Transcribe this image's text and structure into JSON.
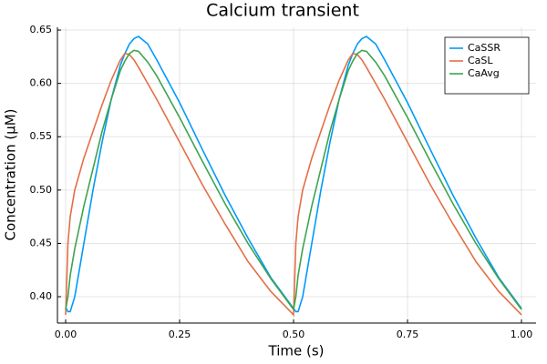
{
  "chart_data": {
    "type": "line",
    "title": "Calcium transient",
    "x_label": "Time (s)",
    "y_label": "Concentration (μM)",
    "x": [
      0,
      0.005,
      0.01,
      0.02,
      0.04,
      0.06,
      0.08,
      0.1,
      0.12,
      0.13,
      0.14,
      0.15,
      0.16,
      0.18,
      0.2,
      0.25,
      0.3,
      0.35,
      0.4,
      0.45,
      0.5,
      0.505,
      0.51,
      0.52,
      0.54,
      0.56,
      0.58,
      0.6,
      0.62,
      0.63,
      0.64,
      0.65,
      0.66,
      0.68,
      0.7,
      0.75,
      0.8,
      0.85,
      0.9,
      0.95,
      1.0
    ],
    "series": [
      {
        "name": "CaSSR",
        "color": "#009AFA",
        "values": [
          0.39,
          0.386,
          0.386,
          0.4,
          0.45,
          0.5,
          0.545,
          0.585,
          0.617,
          0.628,
          0.637,
          0.642,
          0.644,
          0.637,
          0.622,
          0.582,
          0.538,
          0.495,
          0.455,
          0.418,
          0.389,
          0.386,
          0.386,
          0.4,
          0.45,
          0.5,
          0.545,
          0.585,
          0.617,
          0.628,
          0.637,
          0.642,
          0.644,
          0.637,
          0.622,
          0.582,
          0.538,
          0.495,
          0.455,
          0.418,
          0.389
        ]
      },
      {
        "name": "CaSL",
        "color": "#E36F47",
        "values": [
          0.383,
          0.45,
          0.475,
          0.5,
          0.53,
          0.555,
          0.58,
          0.603,
          0.622,
          0.628,
          0.627,
          0.622,
          0.615,
          0.6,
          0.585,
          0.545,
          0.505,
          0.468,
          0.433,
          0.405,
          0.383,
          0.45,
          0.475,
          0.5,
          0.53,
          0.555,
          0.58,
          0.603,
          0.622,
          0.628,
          0.627,
          0.622,
          0.615,
          0.6,
          0.585,
          0.545,
          0.505,
          0.468,
          0.433,
          0.405,
          0.383
        ]
      },
      {
        "name": "CaAvg",
        "color": "#3EA44E",
        "values": [
          0.388,
          0.4,
          0.42,
          0.445,
          0.485,
          0.52,
          0.555,
          0.585,
          0.612,
          0.621,
          0.628,
          0.631,
          0.63,
          0.62,
          0.607,
          0.568,
          0.527,
          0.487,
          0.45,
          0.417,
          0.388,
          0.4,
          0.42,
          0.445,
          0.485,
          0.52,
          0.555,
          0.585,
          0.612,
          0.621,
          0.628,
          0.631,
          0.63,
          0.62,
          0.607,
          0.568,
          0.527,
          0.487,
          0.45,
          0.417,
          0.388
        ]
      }
    ],
    "xlim": [
      -0.018,
      1.032
    ],
    "xticks": [
      {
        "value": 0,
        "label": "0.00"
      },
      0.25,
      {
        "value": 0.5,
        "label": "0.50"
      },
      0.75,
      {
        "value": 1,
        "label": "1.00"
      }
    ],
    "ylim": [
      0.3753,
      0.6526
    ],
    "yticks": [
      {
        "value": 0.4,
        "label": "0.40"
      },
      0.45,
      {
        "value": 0.5,
        "label": "0.50"
      },
      0.55,
      {
        "value": 0.6,
        "label": "0.60"
      },
      0.65
    ],
    "grid": true,
    "legend": "top-right"
  }
}
